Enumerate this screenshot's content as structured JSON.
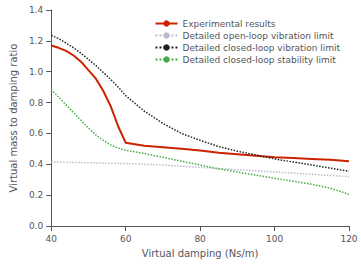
{
  "chart_data": {
    "type": "line",
    "xlabel": "Virtual damping (Ns/m)",
    "ylabel": "Virtual mass to damping ratio",
    "xlim": [
      40,
      120
    ],
    "ylim": [
      0,
      1.4
    ],
    "xticks": [
      40,
      60,
      80,
      100,
      120
    ],
    "yticks": [
      {
        "value": 0,
        "label": "0.0"
      },
      0.2,
      0.4,
      0.6,
      0.8,
      {
        "value": 1.0,
        "label": "1.0"
      },
      1.2,
      1.4
    ],
    "grid": false,
    "legend": "upper right",
    "series": [
      {
        "name": "Experimental results",
        "color": "#cc2200",
        "line_style": "solid",
        "x": [
          40,
          42,
          44,
          46,
          48,
          50,
          52,
          54,
          56,
          58,
          60,
          65,
          70,
          75,
          80,
          85,
          90,
          95,
          100,
          105,
          110,
          115,
          120
        ],
        "values": [
          1.17,
          1.155,
          1.135,
          1.105,
          1.065,
          1.01,
          0.955,
          0.875,
          0.775,
          0.645,
          0.54,
          0.52,
          0.51,
          0.5,
          0.49,
          0.475,
          0.465,
          0.455,
          0.445,
          0.44,
          0.435,
          0.43,
          0.42
        ]
      },
      {
        "name": "Detailed open-loop vibration limit",
        "color": "#bbbbcc",
        "line_style": "dotted",
        "x": [
          40,
          50,
          60,
          70,
          80,
          90,
          100,
          110,
          120
        ],
        "values": [
          0.415,
          0.41,
          0.405,
          0.395,
          0.38,
          0.365,
          0.35,
          0.335,
          0.32
        ]
      },
      {
        "name": "Detailed closed-loop vibration limit",
        "color": "#222222",
        "line_style": "dotted",
        "x": [
          40,
          42,
          44,
          46,
          48,
          50,
          52,
          54,
          56,
          58,
          60,
          65,
          70,
          75,
          80,
          85,
          90,
          95,
          100,
          105,
          110,
          115,
          120
        ],
        "values": [
          1.235,
          1.215,
          1.185,
          1.155,
          1.12,
          1.08,
          1.04,
          0.995,
          0.95,
          0.9,
          0.845,
          0.745,
          0.665,
          0.6,
          0.555,
          0.515,
          0.485,
          0.46,
          0.435,
          0.415,
          0.395,
          0.375,
          0.355
        ]
      },
      {
        "name": "Detailed closed-loop stability limit",
        "color": "#44aa44",
        "line_style": "dotted",
        "x": [
          40,
          42,
          44,
          46,
          48,
          50,
          52,
          54,
          56,
          58,
          60,
          65,
          70,
          75,
          80,
          85,
          90,
          95,
          100,
          105,
          110,
          115,
          120
        ],
        "values": [
          0.885,
          0.835,
          0.785,
          0.735,
          0.685,
          0.635,
          0.59,
          0.555,
          0.525,
          0.505,
          0.49,
          0.47,
          0.445,
          0.42,
          0.395,
          0.37,
          0.35,
          0.33,
          0.31,
          0.29,
          0.27,
          0.245,
          0.205
        ]
      }
    ]
  }
}
